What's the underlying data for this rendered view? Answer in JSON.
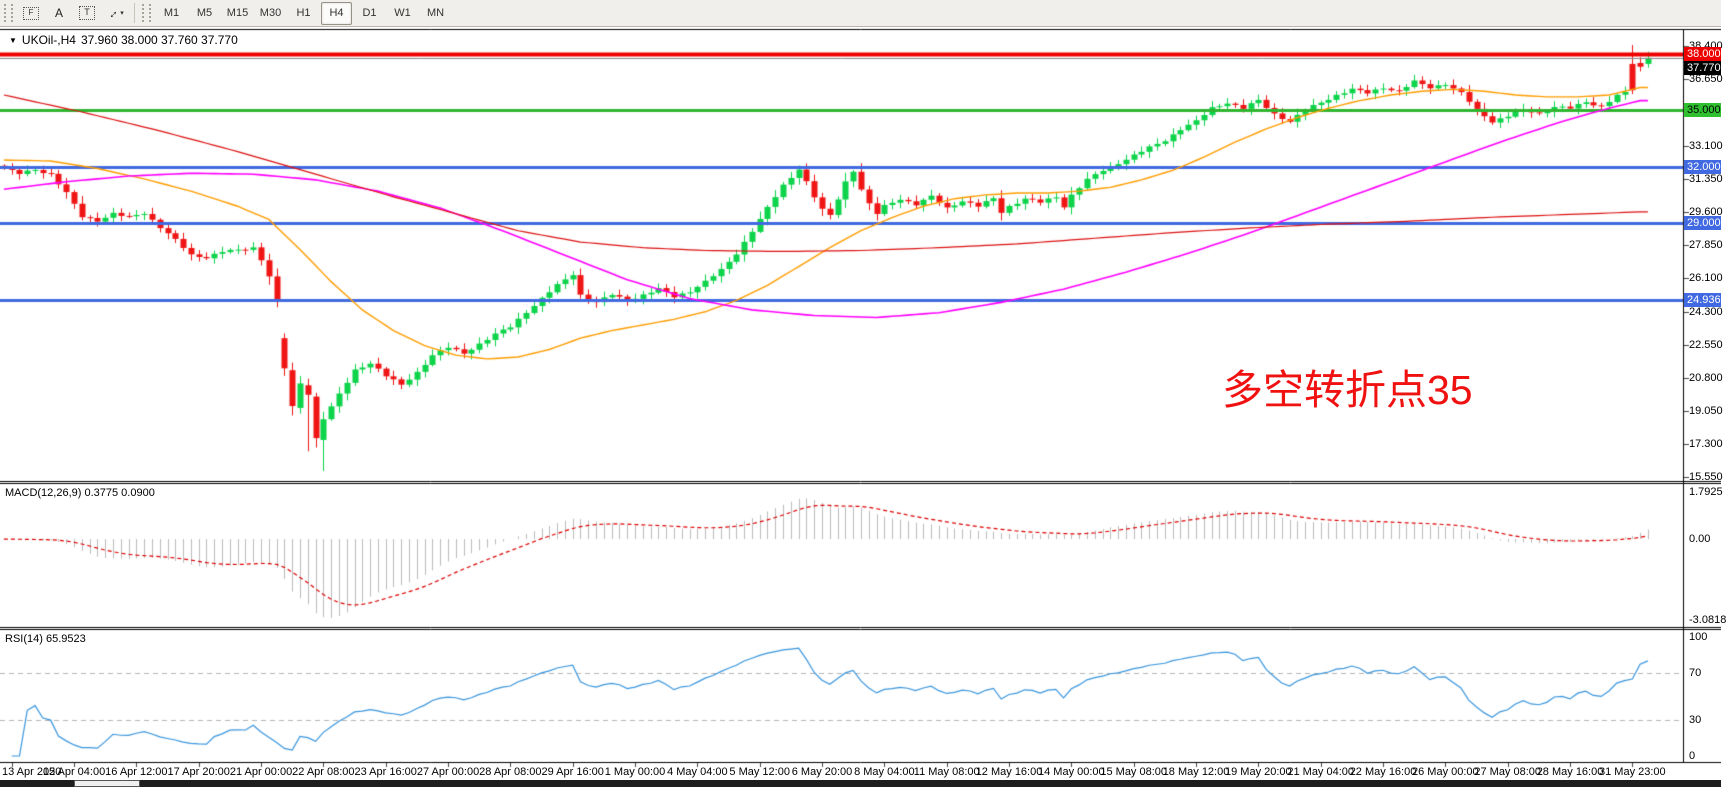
{
  "toolbar": {
    "tools": [
      {
        "name": "fibonacci-tool",
        "label": "F",
        "cls": "fib"
      },
      {
        "name": "text-label-tool",
        "label": "A",
        "cls": "plain"
      },
      {
        "name": "text-box-tool",
        "label": "T",
        "cls": "boxed"
      },
      {
        "name": "arrows-tool",
        "label": "↔",
        "cls": "diag",
        "caret": "▾"
      }
    ],
    "timeframes": [
      {
        "label": "M1"
      },
      {
        "label": "M5"
      },
      {
        "label": "M15"
      },
      {
        "label": "M30"
      },
      {
        "label": "H1"
      },
      {
        "label": "H4",
        "active": true
      },
      {
        "label": "D1"
      },
      {
        "label": "W1"
      },
      {
        "label": "MN"
      }
    ]
  },
  "chart": {
    "dropdown_arrow": "▼",
    "symbol_title": "UKOil-,H4",
    "quote": "37.960 38.000 37.760 37.770",
    "annotation": {
      "text": "多空转折点35",
      "color": "#f01111"
    }
  },
  "chart_data": {
    "type": "candlestick",
    "symbol": "UKOil",
    "timeframe": "H4",
    "title": "UKOil-,H4 37.960 38.000 37.760 37.770",
    "x_labels": [
      "13 Apr 2020",
      "15 Apr 04:00",
      "16 Apr 12:00",
      "17 Apr 20:00",
      "21 Apr 00:00",
      "22 Apr 08:00",
      "23 Apr 16:00",
      "27 Apr 00:00",
      "28 Apr 08:00",
      "29 Apr 16:00",
      "1 May 00:00",
      "4 May 04:00",
      "5 May 12:00",
      "6 May 20:00",
      "8 May 04:00",
      "11 May 08:00",
      "12 May 16:00",
      "14 May 00:00",
      "15 May 08:00",
      "18 May 12:00",
      "19 May 20:00",
      "21 May 04:00",
      "22 May 16:00",
      "26 May 00:00",
      "27 May 08:00",
      "28 May 16:00",
      "31 May 23:00"
    ],
    "price_axis": {
      "ticks": [
        "38.400",
        "36.650",
        "33.100",
        "31.350",
        "29.600",
        "27.850",
        "26.100",
        "24.300",
        "22.550",
        "20.800",
        "19.050",
        "17.300",
        "15.550"
      ],
      "ylim": [
        15.55,
        38.4
      ]
    },
    "price_levels": [
      {
        "label": "38.000",
        "color": "#ee0000",
        "text_color": "#ffffff",
        "line_color": "#ee0000",
        "line_width": 4
      },
      {
        "label": "37.770",
        "color": "#000000",
        "text_color": "#ffffff",
        "line_color": "#8a8a8a",
        "line_width": 1,
        "is_current_price": true
      },
      {
        "label": "35.000",
        "color": "#2fbf2f",
        "text_color": "#000000",
        "line_color": "#2fb52f",
        "line_width": 3
      },
      {
        "label": "32.000",
        "color": "#4169e1",
        "text_color": "#ffffff",
        "line_color": "#4169e1",
        "line_width": 3
      },
      {
        "label": "29.000",
        "color": "#4169e1",
        "text_color": "#ffffff",
        "line_color": "#4169e1",
        "line_width": 3
      },
      {
        "label": "24.936",
        "color": "#4169e1",
        "text_color": "#ffffff",
        "line_color": "#4169e1",
        "line_width": 3
      }
    ],
    "candles": {
      "bars": 212,
      "first_open": 32.05,
      "up_color": "#0dd44a",
      "down_color": "#f01515",
      "close_anchors": [
        [
          0,
          31.9
        ],
        [
          2,
          31.62
        ],
        [
          4,
          31.85
        ],
        [
          6,
          31.6
        ],
        [
          8,
          30.6
        ],
        [
          10,
          29.35
        ],
        [
          12,
          29.15
        ],
        [
          14,
          29.5
        ],
        [
          16,
          29.3
        ],
        [
          18,
          29.55
        ],
        [
          20,
          28.8
        ],
        [
          22,
          28.1
        ],
        [
          24,
          27.3
        ],
        [
          26,
          27.2
        ],
        [
          28,
          27.5
        ],
        [
          30,
          27.55
        ],
        [
          32,
          27.7
        ],
        [
          33,
          27.1
        ],
        [
          34,
          26.2
        ],
        [
          35,
          24.8
        ],
        [
          36,
          21.3
        ],
        [
          38,
          20.5
        ],
        [
          40,
          17.6
        ],
        [
          41,
          18.6
        ],
        [
          43,
          19.9
        ],
        [
          45,
          21.2
        ],
        [
          47,
          21.6
        ],
        [
          49,
          20.9
        ],
        [
          51,
          20.4
        ],
        [
          53,
          21.1
        ],
        [
          55,
          22.0
        ],
        [
          57,
          22.4
        ],
        [
          59,
          22.1
        ],
        [
          61,
          22.6
        ],
        [
          63,
          23.1
        ],
        [
          65,
          23.5
        ],
        [
          67,
          24.3
        ],
        [
          69,
          25.0
        ],
        [
          71,
          25.7
        ],
        [
          73,
          26.3
        ],
        [
          74,
          25.2
        ],
        [
          76,
          24.8
        ],
        [
          78,
          25.2
        ],
        [
          80,
          24.9
        ],
        [
          82,
          25.2
        ],
        [
          84,
          25.5
        ],
        [
          86,
          25.1
        ],
        [
          88,
          25.4
        ],
        [
          90,
          25.9
        ],
        [
          92,
          26.5
        ],
        [
          94,
          27.4
        ],
        [
          96,
          28.6
        ],
        [
          98,
          29.8
        ],
        [
          100,
          31.0
        ],
        [
          102,
          31.9
        ],
        [
          103,
          31.2
        ],
        [
          104,
          30.4
        ],
        [
          105,
          29.7
        ],
        [
          106,
          29.4
        ],
        [
          107,
          30.3
        ],
        [
          108,
          31.2
        ],
        [
          109,
          31.8
        ],
        [
          110,
          30.8
        ],
        [
          111,
          30.0
        ],
        [
          112,
          29.5
        ],
        [
          113,
          29.9
        ],
        [
          115,
          30.3
        ],
        [
          117,
          30.0
        ],
        [
          119,
          30.4
        ],
        [
          121,
          29.8
        ],
        [
          123,
          30.2
        ],
        [
          125,
          29.9
        ],
        [
          127,
          30.3
        ],
        [
          128,
          29.6
        ],
        [
          129,
          29.9
        ],
        [
          131,
          30.3
        ],
        [
          133,
          30.1
        ],
        [
          135,
          30.4
        ],
        [
          136,
          29.9
        ],
        [
          137,
          30.5
        ],
        [
          139,
          31.3
        ],
        [
          141,
          31.8
        ],
        [
          143,
          32.2
        ],
        [
          145,
          32.6
        ],
        [
          147,
          33.0
        ],
        [
          149,
          33.4
        ],
        [
          151,
          34.0
        ],
        [
          153,
          34.4
        ],
        [
          155,
          35.1
        ],
        [
          157,
          35.4
        ],
        [
          159,
          35.1
        ],
        [
          161,
          35.5
        ],
        [
          163,
          34.8
        ],
        [
          165,
          34.4
        ],
        [
          167,
          35.0
        ],
        [
          169,
          35.4
        ],
        [
          171,
          35.8
        ],
        [
          173,
          36.1
        ],
        [
          175,
          35.9
        ],
        [
          177,
          36.2
        ],
        [
          179,
          36.0
        ],
        [
          181,
          36.5
        ],
        [
          183,
          36.2
        ],
        [
          185,
          36.4
        ],
        [
          187,
          35.9
        ],
        [
          189,
          35.0
        ],
        [
          191,
          34.4
        ],
        [
          193,
          34.7
        ],
        [
          195,
          35.0
        ],
        [
          197,
          34.8
        ],
        [
          199,
          35.2
        ],
        [
          201,
          35.1
        ],
        [
          203,
          35.4
        ],
        [
          205,
          35.2
        ],
        [
          207,
          35.8
        ],
        [
          208,
          35.9
        ]
      ],
      "overrides": {
        "36": [
          22.9,
          23.15,
          20.9,
          21.3
        ],
        "37": [
          21.2,
          21.6,
          18.8,
          19.3
        ],
        "38": [
          19.2,
          20.9,
          18.9,
          20.5
        ],
        "39": [
          20.4,
          20.75,
          16.9,
          19.9
        ],
        "40": [
          19.8,
          20.0,
          17.1,
          17.6
        ],
        "41": [
          17.5,
          19.0,
          15.85,
          18.6
        ],
        "209": [
          37.45,
          38.45,
          35.85,
          36.05
        ],
        "210": [
          37.5,
          37.8,
          37.05,
          37.3
        ],
        "211": [
          37.45,
          38.1,
          37.25,
          37.77
        ]
      }
    },
    "moving_averages": [
      {
        "name": "ma-fast",
        "color": "#ff9d00",
        "width": 1.4,
        "anchors": [
          [
            0,
            32.35
          ],
          [
            6,
            32.3
          ],
          [
            12,
            31.9
          ],
          [
            18,
            31.35
          ],
          [
            24,
            30.7
          ],
          [
            30,
            29.9
          ],
          [
            34,
            29.2
          ],
          [
            38,
            27.6
          ],
          [
            42,
            25.9
          ],
          [
            46,
            24.4
          ],
          [
            50,
            23.3
          ],
          [
            54,
            22.5
          ],
          [
            58,
            22.0
          ],
          [
            62,
            21.8
          ],
          [
            66,
            21.9
          ],
          [
            70,
            22.3
          ],
          [
            74,
            22.9
          ],
          [
            78,
            23.3
          ],
          [
            82,
            23.6
          ],
          [
            86,
            23.9
          ],
          [
            90,
            24.3
          ],
          [
            94,
            24.9
          ],
          [
            98,
            25.7
          ],
          [
            102,
            26.7
          ],
          [
            106,
            27.7
          ],
          [
            110,
            28.6
          ],
          [
            114,
            29.3
          ],
          [
            118,
            29.9
          ],
          [
            122,
            30.3
          ],
          [
            126,
            30.5
          ],
          [
            130,
            30.6
          ],
          [
            134,
            30.6
          ],
          [
            138,
            30.7
          ],
          [
            142,
            30.9
          ],
          [
            146,
            31.3
          ],
          [
            150,
            31.8
          ],
          [
            154,
            32.5
          ],
          [
            158,
            33.3
          ],
          [
            162,
            34.0
          ],
          [
            166,
            34.6
          ],
          [
            170,
            35.1
          ],
          [
            174,
            35.5
          ],
          [
            178,
            35.8
          ],
          [
            182,
            36.0
          ],
          [
            186,
            36.1
          ],
          [
            190,
            36.0
          ],
          [
            194,
            35.8
          ],
          [
            198,
            35.7
          ],
          [
            202,
            35.7
          ],
          [
            206,
            35.8
          ],
          [
            210,
            36.2
          ]
        ]
      },
      {
        "name": "ma-medium",
        "color": "#ff00ff",
        "width": 1.6,
        "anchors": [
          [
            0,
            30.8
          ],
          [
            8,
            31.2
          ],
          [
            16,
            31.5
          ],
          [
            24,
            31.65
          ],
          [
            32,
            31.6
          ],
          [
            40,
            31.3
          ],
          [
            48,
            30.7
          ],
          [
            56,
            29.8
          ],
          [
            64,
            28.6
          ],
          [
            72,
            27.3
          ],
          [
            80,
            26.0
          ],
          [
            88,
            25.0
          ],
          [
            96,
            24.4
          ],
          [
            104,
            24.1
          ],
          [
            112,
            24.0
          ],
          [
            120,
            24.25
          ],
          [
            128,
            24.8
          ],
          [
            136,
            25.5
          ],
          [
            144,
            26.4
          ],
          [
            152,
            27.4
          ],
          [
            160,
            28.5
          ],
          [
            168,
            29.7
          ],
          [
            176,
            30.9
          ],
          [
            184,
            32.1
          ],
          [
            192,
            33.3
          ],
          [
            200,
            34.4
          ],
          [
            206,
            35.1
          ],
          [
            210,
            35.5
          ]
        ]
      },
      {
        "name": "ma-slow",
        "color": "#dd1111",
        "width": 1.2,
        "anchors": [
          [
            0,
            35.8
          ],
          [
            10,
            34.9
          ],
          [
            20,
            33.9
          ],
          [
            30,
            32.8
          ],
          [
            40,
            31.6
          ],
          [
            50,
            30.4
          ],
          [
            58,
            29.5
          ],
          [
            66,
            28.6
          ],
          [
            74,
            28.0
          ],
          [
            82,
            27.7
          ],
          [
            90,
            27.55
          ],
          [
            100,
            27.5
          ],
          [
            110,
            27.55
          ],
          [
            120,
            27.7
          ],
          [
            130,
            27.9
          ],
          [
            140,
            28.2
          ],
          [
            150,
            28.5
          ],
          [
            160,
            28.75
          ],
          [
            170,
            28.95
          ],
          [
            180,
            29.1
          ],
          [
            190,
            29.3
          ],
          [
            200,
            29.45
          ],
          [
            210,
            29.6
          ]
        ]
      }
    ],
    "macd": {
      "label": "MACD(12,26,9) 0.3775 0.0900",
      "fast": 12,
      "slow": 26,
      "signal": 9,
      "axis_labels": [
        {
          "text": "1.7925",
          "v": 1.7925
        },
        {
          "text": "0.00",
          "v": 0
        },
        {
          "text": "-3.0818",
          "v": -3.0818
        }
      ],
      "hist_color": "#bbbbbb",
      "signal_color": "#dd0000"
    },
    "rsi": {
      "label": "RSI(14) 65.9523",
      "period": 14,
      "axis_labels": [
        {
          "text": "100",
          "v": 100
        },
        {
          "text": "70",
          "v": 70
        },
        {
          "text": "30",
          "v": 30
        },
        {
          "text": "0",
          "v": 0
        }
      ],
      "levels": [
        70,
        30
      ],
      "line_color": "#3a96dd",
      "level_color": "#b5b5b5"
    }
  }
}
